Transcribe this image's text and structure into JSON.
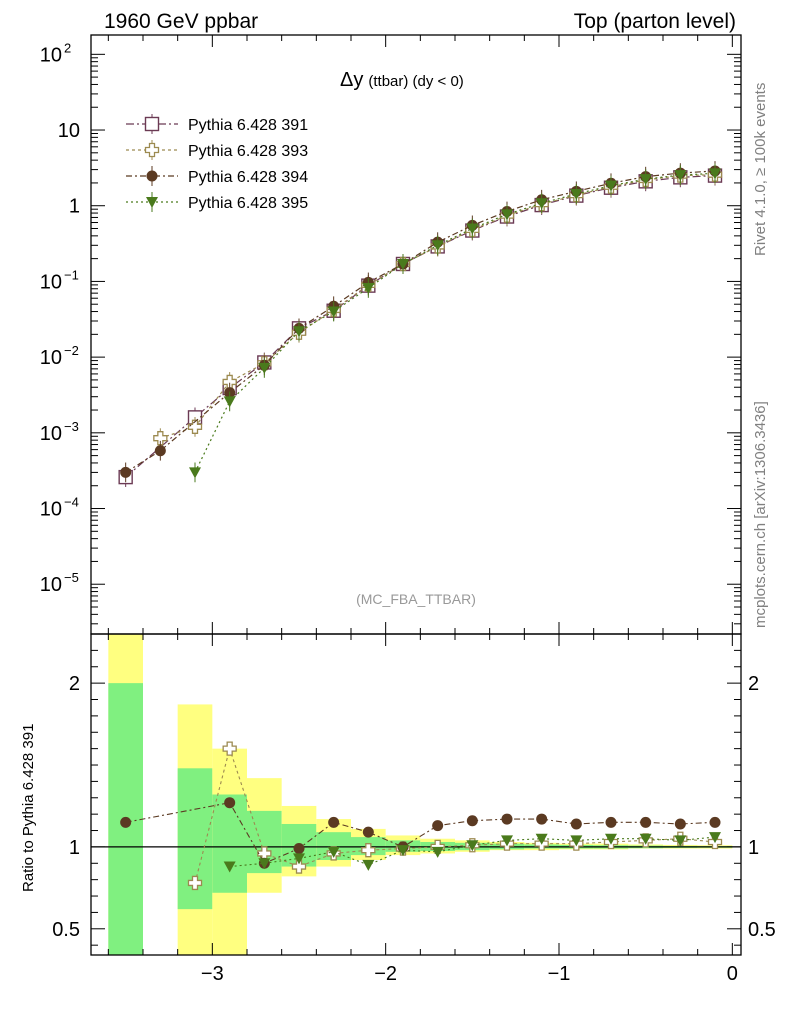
{
  "header": {
    "left_title": "1960 GeV ppbar",
    "right_title": "Top (parton level)"
  },
  "side_labels": {
    "rivet": "Rivet 4.1.0, ≥ 100k events",
    "mcplots": "mcplots.cern.ch [arXiv:1306.3436]"
  },
  "colors": {
    "s391": "#6b3a54",
    "s393": "#9c8a50",
    "s394": "#5b3a22",
    "s395": "#4a7a1c",
    "band_yellow": "#ffff80",
    "band_green": "#80f080"
  },
  "chart_data": [
    {
      "type": "line",
      "title": "Δy",
      "title_suffix": "(ttbar) (dy < 0)",
      "watermark": "(MC_FBA_TTBAR)",
      "xlabel": "",
      "ylabel": "",
      "log_y": true,
      "xlim": [
        -3.7,
        0.05
      ],
      "ylim": [
        2.2e-06,
        180
      ],
      "y_tick_labels": [
        "10^-5",
        "10^-4",
        "10^-3",
        "10^-2",
        "10^-1",
        "1",
        "10",
        "10^2"
      ],
      "legend_position": "top-left",
      "x": [
        -3.5,
        -3.3,
        -3.1,
        -2.9,
        -2.7,
        -2.5,
        -2.3,
        -2.1,
        -1.9,
        -1.7,
        -1.5,
        -1.3,
        -1.1,
        -0.9,
        -0.7,
        -0.5,
        -0.3,
        -0.1
      ],
      "series": [
        {
          "name": "Pythia 6.428 391",
          "marker": "open-square",
          "color_key": "s391",
          "values": [
            0.00026,
            null,
            0.0016,
            0.0039,
            0.0085,
            0.024,
            0.041,
            0.088,
            0.17,
            0.29,
            0.47,
            0.72,
            1.02,
            1.36,
            1.73,
            2.1,
            2.37,
            2.5
          ]
        },
        {
          "name": "Pythia 6.428 393",
          "marker": "open-cross",
          "color_key": "s393",
          "values": [
            null,
            0.00085,
            0.0012,
            0.0047,
            0.0083,
            0.021,
            0.042,
            0.09,
            0.17,
            0.29,
            0.48,
            0.74,
            1.05,
            1.38,
            1.78,
            2.19,
            2.5,
            2.57
          ]
        },
        {
          "name": "Pythia 6.428 394",
          "marker": "filled-circle",
          "color_key": "s394",
          "values": [
            0.0003,
            0.00058,
            null,
            0.0034,
            0.0078,
            0.024,
            0.047,
            0.097,
            0.17,
            0.33,
            0.55,
            0.84,
            1.2,
            1.55,
            1.98,
            2.42,
            2.7,
            2.88
          ]
        },
        {
          "name": "Pythia 6.428 395",
          "marker": "filled-triangle-down",
          "color_key": "s395",
          "values": [
            null,
            null,
            0.0003,
            0.0026,
            0.0072,
            0.022,
            0.04,
            0.082,
            0.17,
            0.3,
            0.5,
            0.77,
            1.08,
            1.43,
            1.84,
            2.25,
            2.54,
            2.68
          ]
        }
      ]
    },
    {
      "type": "line",
      "title": "",
      "xlabel": "",
      "ylabel": "Ratio to Pythia 6.428 391",
      "xlim": [
        -3.7,
        0.05
      ],
      "ylim": [
        0.34,
        2.3
      ],
      "x_ticks": [
        -3,
        -2,
        -1,
        0
      ],
      "x_tick_labels": [
        "−3",
        "−2",
        "−1",
        "0"
      ],
      "y_ticks": [
        0.5,
        1,
        2
      ],
      "y_tick_labels": [
        "0.5",
        "1",
        "2"
      ],
      "reference_line": 1,
      "bins": [
        [
          -3.6,
          -3.4
        ],
        [
          -3.2,
          -3.0
        ],
        [
          -3.0,
          -2.8
        ],
        [
          -2.8,
          -2.6
        ],
        [
          -2.6,
          -2.4
        ],
        [
          -2.4,
          -2.2
        ],
        [
          -2.2,
          -2.0
        ],
        [
          -2.0,
          -1.8
        ],
        [
          -1.8,
          -1.6
        ],
        [
          -1.6,
          -1.4
        ],
        [
          -1.4,
          -1.2
        ],
        [
          -1.2,
          -1.0
        ],
        [
          -1.0,
          -0.8
        ],
        [
          -0.8,
          -0.6
        ],
        [
          -0.6,
          -0.4
        ],
        [
          -0.4,
          -0.2
        ],
        [
          -0.2,
          0.0
        ]
      ],
      "band_yellow": [
        [
          0.34,
          2.3
        ],
        [
          0.34,
          1.87
        ],
        [
          0.34,
          1.6
        ],
        [
          0.72,
          1.42
        ],
        [
          0.82,
          1.25
        ],
        [
          0.88,
          1.17
        ],
        [
          0.92,
          1.11
        ],
        [
          0.95,
          1.07
        ],
        [
          0.96,
          1.05
        ],
        [
          0.97,
          1.04
        ],
        [
          0.98,
          1.03
        ],
        [
          0.98,
          1.025
        ],
        [
          0.985,
          1.02
        ],
        [
          0.985,
          1.02
        ],
        [
          0.99,
          1.015
        ],
        [
          0.99,
          1.012
        ],
        [
          0.99,
          1.01
        ]
      ],
      "band_green": [
        [
          0.34,
          2.0
        ],
        [
          0.62,
          1.48
        ],
        [
          0.72,
          1.32
        ],
        [
          0.84,
          1.22
        ],
        [
          0.88,
          1.14
        ],
        [
          0.92,
          1.09
        ],
        [
          0.95,
          1.06
        ],
        [
          0.97,
          1.04
        ],
        [
          0.975,
          1.03
        ],
        [
          0.98,
          1.025
        ],
        [
          0.985,
          1.02
        ],
        [
          0.99,
          1.015
        ],
        [
          0.99,
          1.012
        ],
        [
          0.99,
          1.01
        ],
        [
          0.992,
          1.008
        ],
        [
          0.994,
          1.006
        ],
        [
          0.995,
          1.005
        ]
      ],
      "series": [
        {
          "name": "Pythia 6.428 393",
          "marker": "open-cross",
          "color_key": "s393",
          "x": [
            -3.1,
            -2.9,
            -2.7,
            -2.5,
            -2.3,
            -2.1,
            -1.9,
            -1.7,
            -1.5,
            -1.3,
            -1.1,
            -0.9,
            -0.7,
            -0.5,
            -0.3,
            -0.1
          ],
          "values": [
            0.78,
            1.6,
            0.96,
            0.88,
            0.96,
            0.98,
            0.99,
            1.0,
            1.01,
            1.02,
            1.02,
            1.02,
            1.03,
            1.04,
            1.05,
            1.03
          ]
        },
        {
          "name": "Pythia 6.428 394",
          "marker": "filled-circle",
          "color_key": "s394",
          "x": [
            -3.5,
            -2.9,
            -2.7,
            -2.5,
            -2.3,
            -2.1,
            -1.9,
            -1.7,
            -1.5,
            -1.3,
            -1.1,
            -0.9,
            -0.7,
            -0.5,
            -0.3,
            -0.1
          ],
          "values": [
            1.15,
            1.27,
            0.9,
            0.99,
            1.15,
            1.09,
            1.0,
            1.13,
            1.16,
            1.17,
            1.17,
            1.14,
            1.15,
            1.15,
            1.14,
            1.15
          ]
        },
        {
          "name": "Pythia 6.428 395",
          "marker": "filled-triangle-down",
          "color_key": "s395",
          "x": [
            -2.9,
            -2.7,
            -2.5,
            -2.3,
            -2.1,
            -1.9,
            -1.7,
            -1.5,
            -1.3,
            -1.1,
            -0.9,
            -0.7,
            -0.5,
            -0.3,
            -0.1
          ],
          "values": [
            0.88,
            0.9,
            0.93,
            0.97,
            0.89,
            0.98,
            0.97,
            1.01,
            1.04,
            1.05,
            1.04,
            1.05,
            1.05,
            1.04,
            1.06
          ]
        }
      ]
    }
  ]
}
